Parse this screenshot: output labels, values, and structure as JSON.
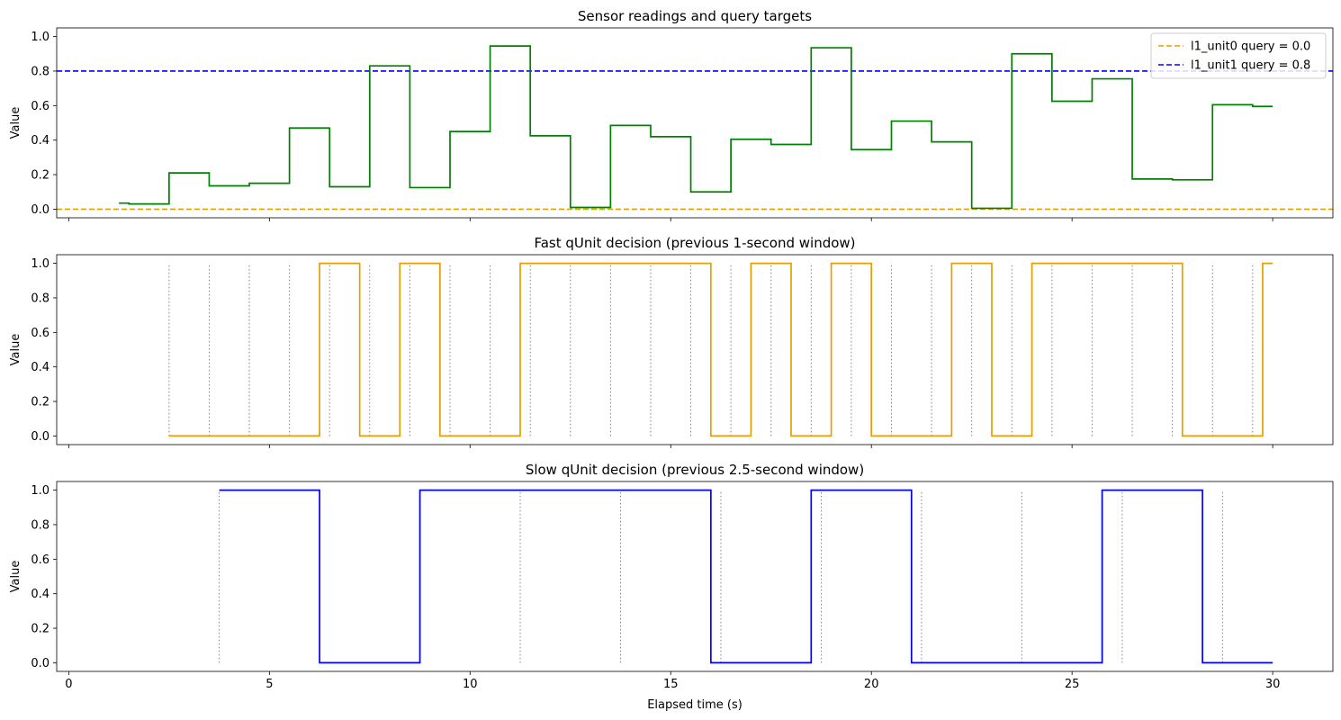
{
  "chart_data": [
    {
      "type": "line",
      "title": "Sensor readings and query targets",
      "ylabel": "Value",
      "xlabel": "",
      "xlim": [
        -0.3,
        31.5
      ],
      "ylim": [
        -0.05,
        1.05
      ],
      "xticks": [
        0,
        5,
        10,
        15,
        20,
        25,
        30
      ],
      "yticks": [
        0.0,
        0.2,
        0.4,
        0.6,
        0.8,
        1.0
      ],
      "ytick_labels": [
        "0.0",
        "0.2",
        "0.4",
        "0.6",
        "0.8",
        "1.0"
      ],
      "show_xtick_labels": false,
      "series": [
        {
          "style": "step",
          "color": "#008000",
          "x": [
            1.25,
            1.5,
            2.5,
            3.5,
            4.5,
            5.5,
            6.5,
            7.5,
            8.5,
            9.5,
            10.5,
            11.5,
            12.5,
            13.5,
            14.5,
            15.5,
            16.5,
            17.5,
            18.5,
            19.5,
            20.5,
            21.5,
            22.5,
            23.5,
            24.5,
            25.5,
            26.5,
            27.5,
            28.5,
            29.5,
            30.0
          ],
          "values": [
            0.035,
            0.03,
            0.21,
            0.135,
            0.15,
            0.47,
            0.13,
            0.83,
            0.125,
            0.45,
            0.945,
            0.425,
            0.01,
            0.485,
            0.42,
            0.1,
            0.405,
            0.375,
            0.935,
            0.345,
            0.51,
            0.39,
            0.005,
            0.9,
            0.625,
            0.755,
            0.175,
            0.17,
            0.605,
            0.595,
            0.595
          ]
        }
      ],
      "reference_lines": [
        {
          "name": "l1_unit0 query = 0.0",
          "y": 0.0,
          "color": "#E69F00"
        },
        {
          "name": "l1_unit1 query = 0.8",
          "y": 0.8,
          "color": "#0000FF"
        }
      ],
      "legend": "top-right"
    },
    {
      "type": "line",
      "title": "Fast qUnit decision (previous 1-second window)",
      "ylabel": "Value",
      "xlabel": "",
      "xlim": [
        -0.3,
        31.5
      ],
      "ylim": [
        -0.05,
        1.05
      ],
      "xticks": [
        0,
        5,
        10,
        15,
        20,
        25,
        30
      ],
      "yticks": [
        0.0,
        0.2,
        0.4,
        0.6,
        0.8,
        1.0
      ],
      "ytick_labels": [
        "0.0",
        "0.2",
        "0.4",
        "0.6",
        "0.8",
        "1.0"
      ],
      "show_xtick_labels": false,
      "series": [
        {
          "style": "step",
          "color": "#E69F00",
          "x": [
            2.5,
            6.25,
            7.25,
            8.25,
            9.25,
            11.25,
            16.0,
            17.0,
            18.0,
            19.0,
            20.0,
            22.0,
            23.0,
            24.0,
            27.75,
            29.75,
            30.0
          ],
          "values": [
            0,
            1,
            0,
            1,
            0,
            1,
            0,
            1,
            0,
            1,
            0,
            1,
            0,
            1,
            0,
            1,
            1
          ]
        }
      ],
      "decision_times": [
        2.5,
        3.5,
        4.5,
        5.5,
        6.5,
        7.5,
        8.5,
        9.5,
        10.5,
        11.5,
        12.5,
        13.5,
        14.5,
        15.5,
        16.5,
        17.5,
        18.5,
        19.5,
        20.5,
        21.5,
        22.5,
        23.5,
        24.5,
        25.5,
        26.5,
        27.5,
        28.5,
        29.5
      ]
    },
    {
      "type": "line",
      "title": "Slow qUnit decision (previous 2.5-second window)",
      "ylabel": "Value",
      "xlabel": "Elapsed time (s)",
      "xlim": [
        -0.3,
        31.5
      ],
      "ylim": [
        -0.05,
        1.05
      ],
      "xticks": [
        0,
        5,
        10,
        15,
        20,
        25,
        30
      ],
      "xtick_labels": [
        "0",
        "5",
        "10",
        "15",
        "20",
        "25",
        "30"
      ],
      "yticks": [
        0.0,
        0.2,
        0.4,
        0.6,
        0.8,
        1.0
      ],
      "ytick_labels": [
        "0.0",
        "0.2",
        "0.4",
        "0.6",
        "0.8",
        "1.0"
      ],
      "show_xtick_labels": true,
      "series": [
        {
          "style": "step",
          "color": "#0000FF",
          "x": [
            3.75,
            6.25,
            8.75,
            16.0,
            18.5,
            21.0,
            25.75,
            28.25,
            30.0
          ],
          "values": [
            1,
            0,
            1,
            0,
            1,
            0,
            1,
            0,
            0
          ]
        }
      ],
      "decision_times": [
        3.75,
        6.25,
        8.75,
        11.25,
        13.75,
        16.25,
        18.75,
        21.25,
        23.75,
        26.25,
        28.75
      ]
    }
  ]
}
